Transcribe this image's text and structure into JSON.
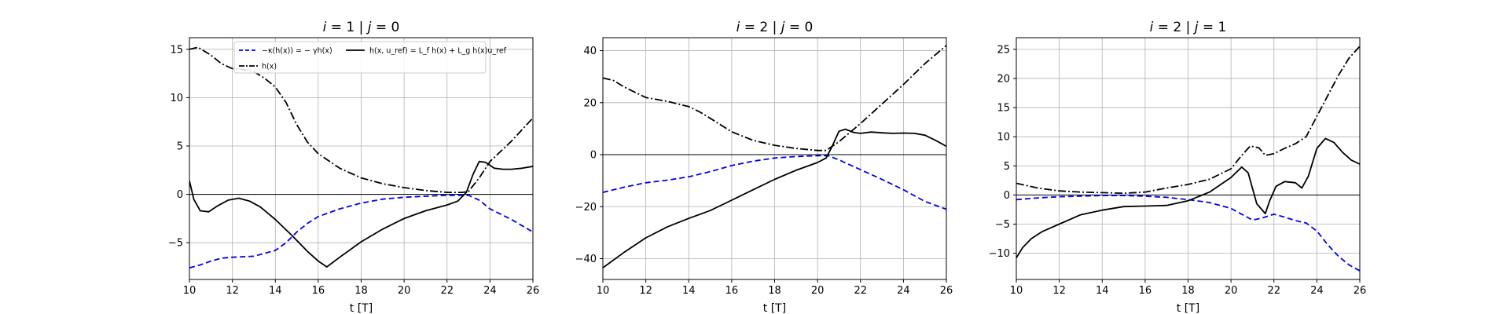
{
  "figure": {
    "xlabel": "t [T]"
  },
  "legend": {
    "entries": [
      {
        "label": "−κ(h(x)) = − γh(x)",
        "style": "dashed",
        "color": "#0000ee"
      },
      {
        "label": "h(x, u_ref) = L_f h(x) + L_g h(x)u_ref",
        "style": "solid",
        "color": "#000000"
      },
      {
        "label": "h(x)",
        "style": "dashdot",
        "color": "#000000"
      }
    ]
  },
  "chart_data": [
    {
      "type": "line",
      "title": "i = 1 | j = 0",
      "title_parts": {
        "i": "i",
        "eq1": " = 1  |  ",
        "j": "j",
        "eq2": " = 0"
      },
      "xlabel": "t [T]",
      "xlim": [
        10,
        26
      ],
      "ylim": [
        -8.8,
        16.2
      ],
      "xticks": [
        10,
        12,
        14,
        16,
        18,
        20,
        22,
        24,
        26
      ],
      "yticks": [
        -5,
        0,
        5,
        10,
        15
      ],
      "grid": true,
      "legend_position": "top",
      "series": [
        {
          "key": "kappa",
          "style": "dashed",
          "color": "#0000ee",
          "x": [
            10,
            10.5,
            11,
            11.5,
            12,
            13,
            14,
            14.5,
            15,
            15.5,
            16,
            17,
            18,
            19,
            20,
            21,
            22,
            22.5,
            23,
            23.5,
            24,
            25,
            26
          ],
          "y": [
            -7.6,
            -7.3,
            -6.9,
            -6.6,
            -6.5,
            -6.4,
            -5.8,
            -5.0,
            -3.9,
            -3.0,
            -2.3,
            -1.5,
            -0.9,
            -0.5,
            -0.3,
            -0.2,
            -0.1,
            -0.1,
            -0.1,
            -0.6,
            -1.5,
            -2.6,
            -3.9
          ]
        },
        {
          "key": "hdot",
          "style": "solid",
          "color": "#000000",
          "x": [
            10,
            10.2,
            10.5,
            10.9,
            11.3,
            11.8,
            12.3,
            12.8,
            13.3,
            14,
            14.8,
            15.5,
            16,
            16.4,
            17,
            18,
            19,
            20,
            21,
            22,
            22.5,
            22.9,
            23.2,
            23.5,
            23.8,
            24.2,
            24.6,
            25,
            25.5,
            26
          ],
          "y": [
            1.4,
            -0.5,
            -1.7,
            -1.8,
            -1.2,
            -0.6,
            -0.4,
            -0.7,
            -1.3,
            -2.6,
            -4.3,
            -5.9,
            -6.9,
            -7.5,
            -6.5,
            -4.9,
            -3.6,
            -2.5,
            -1.7,
            -1.1,
            -0.7,
            0.2,
            2.0,
            3.4,
            3.3,
            2.7,
            2.6,
            2.6,
            2.7,
            2.9
          ]
        },
        {
          "key": "h",
          "style": "dashdot",
          "color": "#000000",
          "x": [
            10,
            10.4,
            11,
            11.5,
            12,
            12.5,
            13,
            13.5,
            14,
            14.5,
            15,
            15.5,
            16,
            17,
            18,
            19,
            20,
            21,
            22,
            22.7,
            23,
            23.5,
            24,
            25,
            26
          ],
          "y": [
            15.0,
            15.2,
            14.4,
            13.5,
            13.0,
            12.9,
            12.7,
            12.0,
            11.1,
            9.5,
            7.2,
            5.4,
            4.2,
            2.7,
            1.7,
            1.1,
            0.7,
            0.4,
            0.2,
            0.2,
            0.3,
            1.7,
            3.4,
            5.5,
            7.9
          ]
        }
      ]
    },
    {
      "type": "line",
      "title": "i = 2 | j = 0",
      "title_parts": {
        "i": "i",
        "eq1": " = 2  |  ",
        "j": "j",
        "eq2": " = 0"
      },
      "xlabel": "t [T]",
      "xlim": [
        10,
        26
      ],
      "ylim": [
        -48,
        45
      ],
      "xticks": [
        10,
        12,
        14,
        16,
        18,
        20,
        22,
        24,
        26
      ],
      "yticks": [
        -40,
        -20,
        0,
        20,
        40
      ],
      "grid": true,
      "series": [
        {
          "key": "kappa",
          "style": "dashed",
          "color": "#0000ee",
          "x": [
            10,
            11,
            12,
            13,
            14,
            15,
            16,
            17,
            18,
            19,
            20,
            20.5,
            21,
            22,
            23,
            24,
            25,
            26
          ],
          "y": [
            -14.5,
            -12.5,
            -10.8,
            -9.8,
            -8.5,
            -6.5,
            -4.2,
            -2.5,
            -1.3,
            -0.7,
            -0.4,
            -0.4,
            -2.0,
            -5.8,
            -9.5,
            -13.5,
            -18.0,
            -21.0
          ]
        },
        {
          "key": "hdot",
          "style": "solid",
          "color": "#000000",
          "x": [
            10,
            11,
            12,
            13,
            14,
            15,
            16,
            17,
            18,
            19,
            20,
            20.4,
            20.7,
            21,
            21.3,
            21.7,
            22,
            22.5,
            23,
            23.5,
            24,
            24.5,
            25,
            25.5,
            26
          ],
          "y": [
            -43.5,
            -37.5,
            -32.0,
            -27.8,
            -24.5,
            -21.5,
            -17.5,
            -13.5,
            -9.5,
            -6.0,
            -3.0,
            -1.3,
            3.5,
            9.0,
            9.8,
            8.5,
            8.2,
            8.7,
            8.4,
            8.2,
            8.3,
            8.2,
            7.5,
            5.5,
            3.2
          ]
        },
        {
          "key": "h",
          "style": "dashdot",
          "color": "#000000",
          "x": [
            10,
            10.5,
            11,
            12,
            13,
            14,
            14.5,
            15,
            16,
            17,
            18,
            19,
            20,
            20.4,
            21,
            22,
            23,
            24,
            25,
            26
          ],
          "y": [
            29.5,
            28.5,
            26.0,
            22.0,
            20.5,
            18.5,
            16.5,
            14.0,
            8.8,
            5.5,
            3.6,
            2.4,
            1.6,
            1.6,
            5.0,
            12.0,
            19.5,
            27.0,
            35.0,
            42.0
          ]
        }
      ]
    },
    {
      "type": "line",
      "title": "i = 2 | j = 1",
      "title_parts": {
        "i": "i",
        "eq1": " = 2  |  ",
        "j": "j",
        "eq2": " = 1"
      },
      "xlabel": "t [T]",
      "xlim": [
        10,
        26
      ],
      "ylim": [
        -14.5,
        27
      ],
      "xticks": [
        10,
        12,
        14,
        16,
        18,
        20,
        22,
        24,
        26
      ],
      "yticks": [
        -10,
        -5,
        0,
        5,
        10,
        15,
        20,
        25
      ],
      "grid": true,
      "series": [
        {
          "key": "kappa",
          "style": "dashed",
          "color": "#0000ee",
          "x": [
            10,
            11,
            12,
            13,
            14,
            15,
            16,
            17,
            18,
            19,
            20,
            20.5,
            21,
            21.4,
            22,
            22.5,
            23,
            23.5,
            24,
            24.5,
            25,
            25.5,
            26
          ],
          "y": [
            -0.8,
            -0.5,
            -0.3,
            -0.2,
            -0.1,
            -0.1,
            -0.2,
            -0.4,
            -0.8,
            -1.3,
            -2.3,
            -3.3,
            -4.3,
            -4.0,
            -3.3,
            -3.8,
            -4.4,
            -4.8,
            -6.2,
            -8.5,
            -10.5,
            -12.0,
            -13.0
          ]
        },
        {
          "key": "hdot",
          "style": "solid",
          "color": "#000000",
          "x": [
            10,
            10.3,
            10.7,
            11.2,
            12,
            13,
            14,
            15,
            16,
            17,
            18,
            19,
            20,
            20.5,
            20.8,
            21.2,
            21.6,
            21.8,
            22.1,
            22.5,
            23,
            23.3,
            23.6,
            24,
            24.4,
            24.8,
            25.2,
            25.6,
            26
          ],
          "y": [
            -10.8,
            -9.0,
            -7.5,
            -6.3,
            -5.0,
            -3.4,
            -2.6,
            -2.0,
            -1.9,
            -1.8,
            -1.0,
            0.5,
            3.0,
            4.8,
            3.8,
            -1.5,
            -3.2,
            -1.0,
            1.5,
            2.3,
            2.1,
            1.2,
            3.2,
            8.0,
            9.7,
            9.0,
            7.3,
            6.0,
            5.3
          ]
        },
        {
          "key": "h",
          "style": "dashdot",
          "color": "#000000",
          "x": [
            10,
            11,
            12,
            13,
            14,
            15,
            16,
            17,
            18,
            19,
            20,
            20.5,
            20.9,
            21.3,
            21.6,
            22,
            22.5,
            23,
            23.5,
            24,
            24.5,
            25,
            25.5,
            26
          ],
          "y": [
            2.0,
            1.2,
            0.7,
            0.5,
            0.4,
            0.3,
            0.5,
            1.2,
            1.8,
            2.7,
            4.5,
            6.8,
            8.4,
            8.1,
            6.8,
            7.1,
            8.0,
            8.8,
            10.0,
            13.5,
            17.0,
            20.5,
            23.5,
            25.5
          ]
        }
      ]
    }
  ]
}
